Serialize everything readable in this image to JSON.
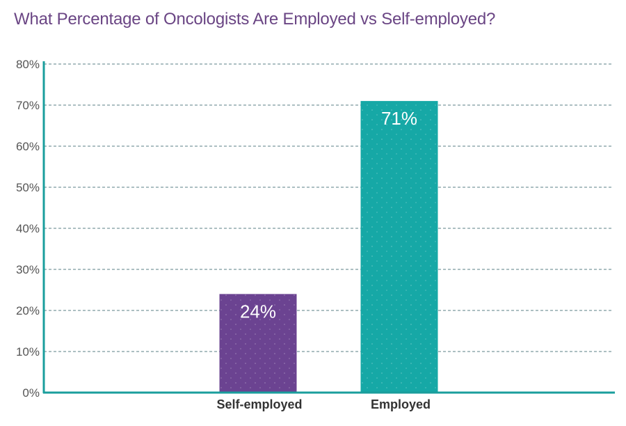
{
  "title": "What Percentage of Oncologists Are Employed vs Self-employed?",
  "colors": {
    "title": "#6a4584",
    "axis": "#1a9e9c",
    "grid": "#5a7f86",
    "self_employed_bar": "#6b4391",
    "employed_bar": "#16a8a6"
  },
  "chart_data": {
    "type": "bar",
    "title": "What Percentage of Oncologists Are Employed vs Self-employed?",
    "categories": [
      "Self-employed",
      "Employed"
    ],
    "values": [
      24,
      71
    ],
    "data_labels": [
      "24%",
      "71%"
    ],
    "ylim": [
      0,
      80
    ],
    "yticks": [
      0,
      10,
      20,
      30,
      40,
      50,
      60,
      70,
      80
    ],
    "ytick_labels": [
      "0%",
      "10%",
      "20%",
      "30%",
      "40%",
      "50%",
      "60%",
      "70%",
      "80%"
    ],
    "xlabel": "",
    "ylabel": "",
    "grid": true,
    "legend": false
  }
}
